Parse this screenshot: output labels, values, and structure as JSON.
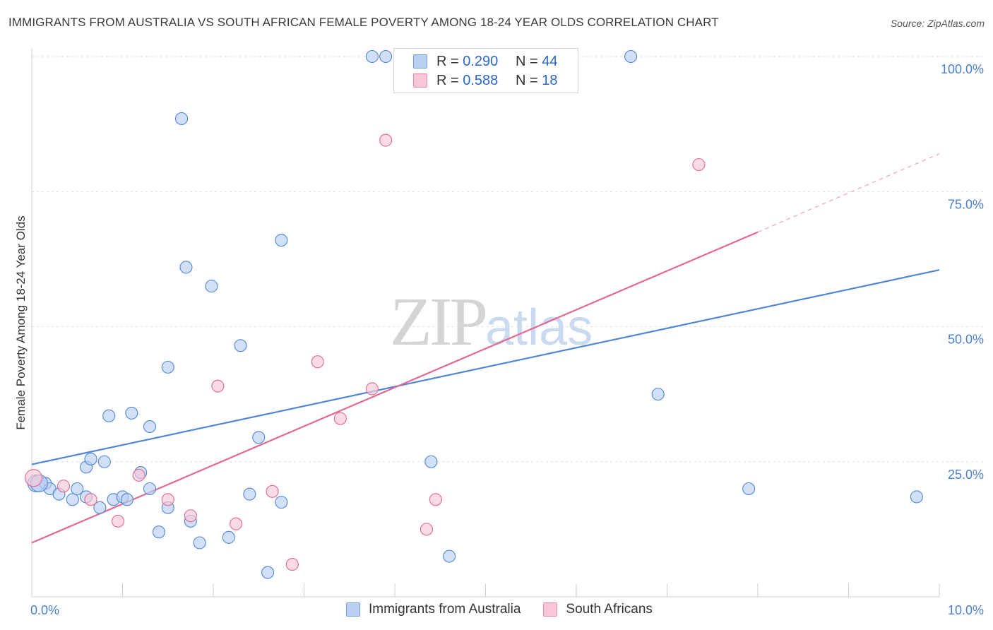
{
  "header": {
    "title": "IMMIGRANTS FROM AUSTRALIA VS SOUTH AFRICAN FEMALE POVERTY AMONG 18-24 YEAR OLDS CORRELATION CHART",
    "source": "Source: ZipAtlas.com"
  },
  "watermark": {
    "zip": "ZIP",
    "atlas": "atlas"
  },
  "legend": {
    "rows": [
      {
        "r_label": "R =",
        "r_value": "0.290",
        "n_label": "N =",
        "n_value": "44",
        "color": "#6fa0e0",
        "fill": "#b9d0f3"
      },
      {
        "r_label": "R =",
        "r_value": "0.588",
        "n_label": "N =",
        "n_value": "18",
        "color": "#ee86a8",
        "fill": "#f8c7d6"
      }
    ]
  },
  "bottom_legend": {
    "items": [
      {
        "label": "Immigrants from Australia",
        "color": "#6fa0e0",
        "fill": "#b9d0f3"
      },
      {
        "label": "South Africans",
        "color": "#ee86a8",
        "fill": "#f8c7d6"
      }
    ]
  },
  "chart_data": {
    "type": "scatter",
    "title": "IMMIGRANTS FROM AUSTRALIA VS SOUTH AFRICAN FEMALE POVERTY AMONG 18-24 YEAR OLDS CORRELATION CHART",
    "xlabel": "",
    "ylabel": "Female Poverty Among 18-24 Year Olds",
    "xlim": [
      0,
      10
    ],
    "ylim": [
      0,
      100
    ],
    "x_ticks": [
      {
        "value": 0,
        "label": "0.0%"
      },
      {
        "value": 10,
        "label": "10.0%"
      }
    ],
    "y_ticks": [
      {
        "value": 25,
        "label": "25.0%"
      },
      {
        "value": 50,
        "label": "50.0%"
      },
      {
        "value": 75,
        "label": "75.0%"
      },
      {
        "value": 100,
        "label": "100.0%"
      }
    ],
    "grid": true,
    "legend_position": "top-center",
    "series": [
      {
        "name": "Immigrants from Australia",
        "color": "#4f86d6",
        "fill": "#b9d0f3",
        "points": [
          [
            0.05,
            21
          ],
          [
            0.15,
            21
          ],
          [
            0.2,
            20
          ],
          [
            0.3,
            19
          ],
          [
            0.45,
            18
          ],
          [
            0.5,
            20
          ],
          [
            0.6,
            18.5
          ],
          [
            0.6,
            24
          ],
          [
            0.65,
            25.5
          ],
          [
            0.75,
            16.5
          ],
          [
            0.8,
            25
          ],
          [
            0.85,
            33.5
          ],
          [
            0.9,
            18
          ],
          [
            1.0,
            18.5
          ],
          [
            1.05,
            18
          ],
          [
            1.1,
            34
          ],
          [
            1.2,
            23
          ],
          [
            1.3,
            31.5
          ],
          [
            1.3,
            20
          ],
          [
            1.4,
            12
          ],
          [
            1.5,
            16.5
          ],
          [
            1.5,
            42.5
          ],
          [
            1.65,
            88.5
          ],
          [
            1.7,
            61
          ],
          [
            1.75,
            14
          ],
          [
            1.85,
            10
          ],
          [
            1.98,
            57.5
          ],
          [
            2.17,
            11
          ],
          [
            2.3,
            46.5
          ],
          [
            2.4,
            19
          ],
          [
            2.5,
            29.5
          ],
          [
            2.6,
            4.5
          ],
          [
            2.75,
            17.5
          ],
          [
            2.75,
            66
          ],
          [
            3.75,
            100
          ],
          [
            3.9,
            100
          ],
          [
            4.4,
            100
          ],
          [
            4.4,
            25
          ],
          [
            4.6,
            7.5
          ],
          [
            6.6,
            100
          ],
          [
            6.9,
            37.5
          ],
          [
            7.9,
            20
          ],
          [
            9.75,
            18.5
          ],
          [
            0.08,
            21
          ]
        ],
        "trend": {
          "x0": 0,
          "y0": 24.5,
          "x1": 10,
          "y1": 60.5
        }
      },
      {
        "name": "South Africans",
        "color": "#e26795",
        "fill": "#f8c7d6",
        "points": [
          [
            0.02,
            22
          ],
          [
            0.35,
            20.5
          ],
          [
            0.65,
            18
          ],
          [
            0.95,
            14
          ],
          [
            1.18,
            22.5
          ],
          [
            1.5,
            18
          ],
          [
            1.75,
            15
          ],
          [
            2.05,
            39
          ],
          [
            2.25,
            13.5
          ],
          [
            2.65,
            19.5
          ],
          [
            2.87,
            6
          ],
          [
            3.15,
            43.5
          ],
          [
            3.4,
            33
          ],
          [
            3.75,
            38.5
          ],
          [
            3.9,
            84.5
          ],
          [
            4.35,
            12.5
          ],
          [
            4.45,
            18
          ],
          [
            7.35,
            80
          ]
        ],
        "trend": {
          "x0": 0,
          "y0": 10,
          "x1": 8,
          "y1": 67.5,
          "dash_x1": 10,
          "dash_y1": 82
        }
      }
    ]
  }
}
